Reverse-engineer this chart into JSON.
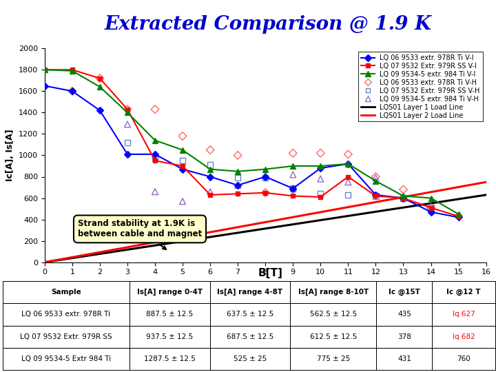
{
  "title": "Extracted Comparison @ 1.9 K",
  "title_color": "#0000CC",
  "title_fontsize": 20,
  "xlabel": "B[T]",
  "ylabel": "Ic[A], Is[A]",
  "xlim": [
    0,
    16
  ],
  "ylim": [
    0,
    2000
  ],
  "yticks": [
    0,
    200,
    400,
    600,
    800,
    1000,
    1200,
    1400,
    1600,
    1800,
    2000
  ],
  "xticks": [
    0,
    1,
    2,
    3,
    4,
    5,
    6,
    7,
    8,
    9,
    10,
    11,
    12,
    13,
    14,
    15,
    16
  ],
  "bg_color": "#FFFFFF",
  "plot_bg": "#FFFFFF",
  "series_blue_x": [
    0,
    1,
    2,
    3,
    4,
    5,
    6,
    7,
    8,
    9,
    10,
    11,
    12,
    13,
    14,
    15
  ],
  "series_blue_y": [
    1650,
    1600,
    1420,
    1010,
    1010,
    870,
    800,
    720,
    800,
    690,
    880,
    920,
    630,
    600,
    470,
    420
  ],
  "series_red_x": [
    0,
    1,
    2,
    3,
    4,
    5,
    6,
    7,
    8,
    9,
    10,
    11,
    12,
    13,
    14,
    15
  ],
  "series_red_y": [
    1800,
    1800,
    1720,
    1430,
    950,
    900,
    630,
    640,
    650,
    620,
    610,
    800,
    620,
    600,
    510,
    430
  ],
  "series_green_x": [
    0,
    1,
    2,
    3,
    4,
    5,
    6,
    7,
    8,
    9,
    10,
    11,
    12,
    13,
    14,
    15
  ],
  "series_green_y": [
    1800,
    1790,
    1640,
    1400,
    1140,
    1050,
    870,
    850,
    870,
    900,
    900,
    920,
    760,
    620,
    600,
    450
  ],
  "scatter_pink_x": [
    1,
    2,
    3,
    4,
    5,
    6,
    7,
    8,
    9,
    10,
    11,
    12,
    13,
    14,
    15
  ],
  "scatter_pink_y": [
    1600,
    1720,
    1430,
    1430,
    1180,
    1050,
    1000,
    650,
    1020,
    1020,
    1010,
    800,
    680,
    510,
    430
  ],
  "scatter_blue_x": [
    3,
    4,
    5,
    6,
    7,
    8,
    9,
    10,
    11,
    12,
    13,
    14
  ],
  "scatter_blue_y": [
    1120,
    970,
    950,
    910,
    790,
    790,
    690,
    640,
    630,
    620,
    600,
    510
  ],
  "scatter_purple_x": [
    3,
    4,
    5,
    6,
    7,
    8,
    9,
    10,
    11,
    12
  ],
  "scatter_purple_y": [
    1290,
    660,
    570,
    660,
    720,
    810,
    820,
    780,
    750,
    790
  ],
  "load_line1_x": [
    0,
    16
  ],
  "load_line1_y": [
    0,
    630
  ],
  "load_line2_x": [
    0,
    16
  ],
  "load_line2_y": [
    0,
    750
  ],
  "annotation_text": "Strand stability at 1.9K is\nbetween cable and magnet",
  "table_headers": [
    "Sample",
    "Is[A] range 0-4T",
    "Is[A] range 4-8T",
    "Is[A] range 8-10T",
    "Ic @15T",
    "Ic @12 T"
  ],
  "table_rows": [
    [
      "LQ 06 9533 extr. 978R Ti",
      "887.5 ± 12.5",
      "637.5 ± 12.5",
      "562.5 ± 12.5",
      "435",
      "Iq 627"
    ],
    [
      "LQ 07 9532 Extr. 979R SS",
      "937.5 ± 12.5",
      "687.5 ± 12.5",
      "612.5 ± 12.5",
      "378",
      "Iq 682"
    ],
    [
      "LQ 09 9534-5 Extr 984 Ti",
      "1287.5 ± 12.5",
      "525 ± 25",
      "775 ± 25",
      "431",
      "760"
    ]
  ],
  "table_red_col": [
    true,
    true,
    false
  ],
  "col_widths": [
    0.235,
    0.148,
    0.148,
    0.16,
    0.103,
    0.116
  ],
  "legend_labels": [
    "LQ 06 9533 extr. 978R Ti V-I",
    "LQ 07 9532 Extr. 979R SS V-I",
    "LQ 09 9534-5 extr. 984 Ti V-I",
    "LQ 06 9533 extr. 978R Ti V-H",
    "LQ 07 9532 Extr. 979R SS V-H",
    "LQ 09 9534-5 extr. 984 Ti V-H",
    "LQS01 Layer 1 Load Line",
    "LQS01 Layer 2 Load Line"
  ]
}
